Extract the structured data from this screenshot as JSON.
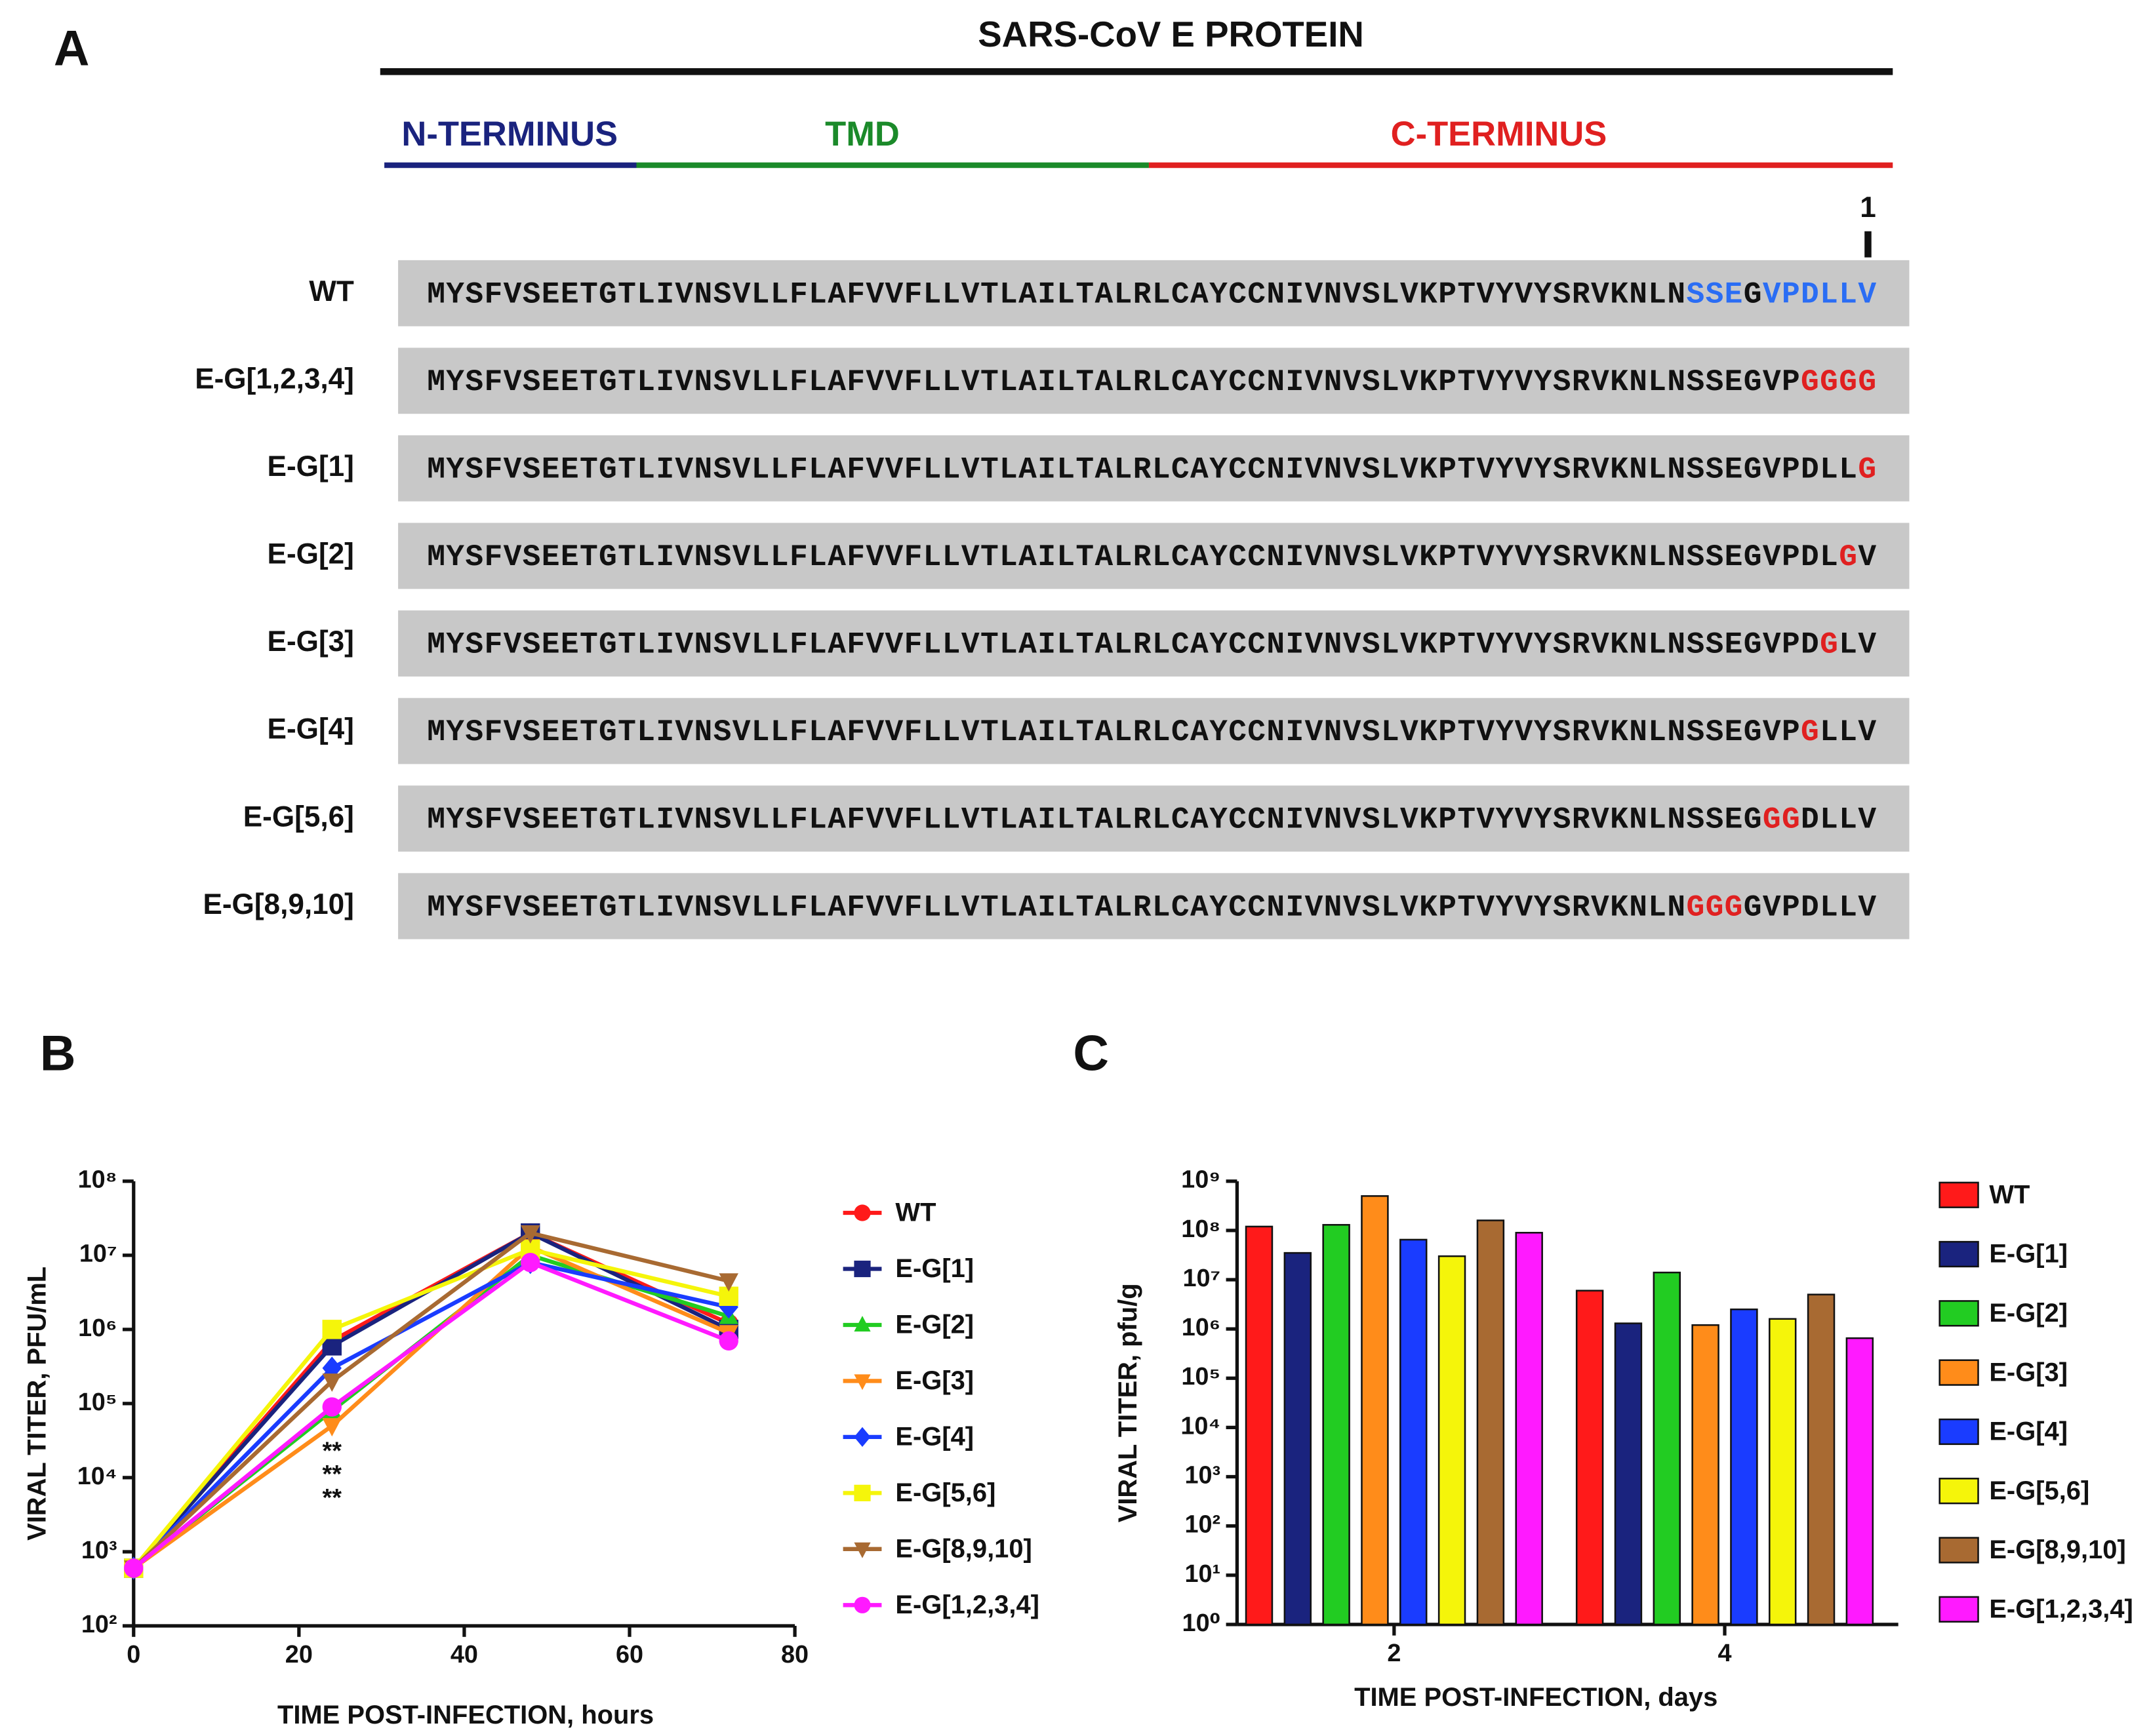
{
  "sequence_panel": {
    "label": "A",
    "title": "SARS-CoV E PROTEIN",
    "domains": [
      {
        "label": "N-TERMINUS",
        "color": "#1a237e"
      },
      {
        "label": "TMD",
        "color": "#1b8a2a"
      },
      {
        "label": "C-TERMINUS",
        "color": "#e02020"
      }
    ],
    "position_label": "1",
    "rows": [
      {
        "name": "WT",
        "segments": [
          {
            "text": "MYSFVSEETGTLIVNSVLLFLAFVVFLLVTLAILTALRLCAYCCNIVNVSLVKPTVYVYSRVKNLN",
            "color": "#111111"
          },
          {
            "text": "SSE",
            "color": "#2a6df4"
          },
          {
            "text": "G",
            "color": "#111111"
          },
          {
            "text": "VPDLLV",
            "color": "#2a6df4"
          }
        ]
      },
      {
        "name": "E-G[1,2,3,4]",
        "segments": [
          {
            "text": "MYSFVSEETGTLIVNSVLLFLAFVVFLLVTLAILTALRLCAYCCNIVNVSLVKPTVYVYSRVKNLNSSEGVP",
            "color": "#111111"
          },
          {
            "text": "GGGG",
            "color": "#e02020"
          }
        ]
      },
      {
        "name": "E-G[1]",
        "segments": [
          {
            "text": "MYSFVSEETGTLIVNSVLLFLAFVVFLLVTLAILTALRLCAYCCNIVNVSLVKPTVYVYSRVKNLNSSEGVPDLL",
            "color": "#111111"
          },
          {
            "text": "G",
            "color": "#e02020"
          }
        ]
      },
      {
        "name": "E-G[2]",
        "segments": [
          {
            "text": "MYSFVSEETGTLIVNSVLLFLAFVVFLLVTLAILTALRLCAYCCNIVNVSLVKPTVYVYSRVKNLNSSEGVPDL",
            "color": "#111111"
          },
          {
            "text": "G",
            "color": "#e02020"
          },
          {
            "text": "V",
            "color": "#111111"
          }
        ]
      },
      {
        "name": "E-G[3]",
        "segments": [
          {
            "text": "MYSFVSEETGTLIVNSVLLFLAFVVFLLVTLAILTALRLCAYCCNIVNVSLVKPTVYVYSRVKNLNSSEGVPD",
            "color": "#111111"
          },
          {
            "text": "G",
            "color": "#e02020"
          },
          {
            "text": "LV",
            "color": "#111111"
          }
        ]
      },
      {
        "name": "E-G[4]",
        "segments": [
          {
            "text": "MYSFVSEETGTLIVNSVLLFLAFVVFLLVTLAILTALRLCAYCCNIVNVSLVKPTVYVYSRVKNLNSSEGVP",
            "color": "#111111"
          },
          {
            "text": "G",
            "color": "#e02020"
          },
          {
            "text": "LLV",
            "color": "#111111"
          }
        ]
      },
      {
        "name": "E-G[5,6]",
        "segments": [
          {
            "text": "MYSFVSEETGTLIVNSVLLFLAFVVFLLVTLAILTALRLCAYCCNIVNVSLVKPTVYVYSRVKNLNSSEG",
            "color": "#111111"
          },
          {
            "text": "GG",
            "color": "#e02020"
          },
          {
            "text": "DLLV",
            "color": "#111111"
          }
        ]
      },
      {
        "name": "E-G[8,9,10]",
        "segments": [
          {
            "text": "MYSFVSEETGTLIVNSVLLFLAFVVFLLVTLAILTALRLCAYCCNIVNVSLVKPTVYVYSRVKNLN",
            "color": "#111111"
          },
          {
            "text": "GGG",
            "color": "#e02020"
          },
          {
            "text": "GVPDLLV",
            "color": "#111111"
          }
        ]
      }
    ]
  },
  "chart_data": [
    {
      "type": "line",
      "panel_label": "B",
      "x_label": "TIME POST-INFECTION, hours",
      "y_label": "VIRAL TITER, PFU/mL",
      "x": [
        0,
        24,
        48,
        72
      ],
      "xlim": [
        0,
        80
      ],
      "xticks": [
        0,
        20,
        40,
        60,
        80
      ],
      "log_y": true,
      "ylim": [
        100,
        100000000
      ],
      "yticks": [
        {
          "value": 100,
          "label": "10²"
        },
        {
          "value": 1000,
          "label": "10³"
        },
        {
          "value": 10000,
          "label": "10⁴"
        },
        {
          "value": 100000,
          "label": "10⁵"
        },
        {
          "value": 1000000,
          "label": "10⁶"
        },
        {
          "value": 10000000,
          "label": "10⁷"
        },
        {
          "value": 100000000,
          "label": "10⁸"
        }
      ],
      "annotations": [
        "**",
        "**",
        "**"
      ],
      "series": [
        {
          "name": "WT",
          "color": "#ff1a1a",
          "marker": "circle",
          "values": [
            600,
            700000,
            20000000,
            1200000
          ]
        },
        {
          "name": "E-G[1]",
          "color": "#1a237e",
          "marker": "square",
          "values": [
            600,
            600000,
            20000000,
            1000000
          ]
        },
        {
          "name": "E-G[2]",
          "color": "#22cc22",
          "marker": "triangle",
          "values": [
            600,
            80000,
            10000000,
            1500000
          ]
        },
        {
          "name": "E-G[3]",
          "color": "#ff8c1a",
          "marker": "triangle-down",
          "values": [
            600,
            50000,
            13000000,
            900000
          ]
        },
        {
          "name": "E-G[4]",
          "color": "#1a3cff",
          "marker": "diamond",
          "values": [
            600,
            300000,
            8000000,
            2000000
          ]
        },
        {
          "name": "E-G[5,6]",
          "color": "#f5f50a",
          "marker": "square",
          "values": [
            600,
            1000000,
            12000000,
            2800000
          ]
        },
        {
          "name": "E-G[8,9,10]",
          "color": "#a86a32",
          "marker": "triangle-down",
          "values": [
            600,
            200000,
            20000000,
            4500000
          ]
        },
        {
          "name": "E-G[1,2,3,4]",
          "color": "#ff1aff",
          "marker": "circle",
          "values": [
            600,
            90000,
            8000000,
            700000
          ]
        }
      ]
    },
    {
      "type": "bar",
      "panel_label": "C",
      "x_label": "TIME POST-INFECTION, days",
      "y_label": "VIRAL TITER, pfu/g",
      "categories": [
        "2",
        "4"
      ],
      "log_y": true,
      "ylim": [
        1,
        1000000000
      ],
      "yticks": [
        {
          "value": 1,
          "label": "10⁰"
        },
        {
          "value": 10,
          "label": "10¹"
        },
        {
          "value": 100,
          "label": "10²"
        },
        {
          "value": 1000,
          "label": "10³"
        },
        {
          "value": 10000,
          "label": "10⁴"
        },
        {
          "value": 100000,
          "label": "10⁵"
        },
        {
          "value": 1000000,
          "label": "10⁶"
        },
        {
          "value": 10000000,
          "label": "10⁷"
        },
        {
          "value": 100000000,
          "label": "10⁸"
        },
        {
          "value": 1000000000,
          "label": "10⁹"
        }
      ],
      "series": [
        {
          "name": "WT",
          "color": "#ff1a1a",
          "values": [
            120000000,
            6000000
          ]
        },
        {
          "name": "E-G[1]",
          "color": "#1a237e",
          "values": [
            35000000,
            1300000
          ]
        },
        {
          "name": "E-G[2]",
          "color": "#22cc22",
          "values": [
            130000000,
            14000000
          ]
        },
        {
          "name": "E-G[3]",
          "color": "#ff8c1a",
          "values": [
            500000000,
            1200000
          ]
        },
        {
          "name": "E-G[4]",
          "color": "#1a3cff",
          "values": [
            65000000,
            2500000
          ]
        },
        {
          "name": "E-G[5,6]",
          "color": "#f5f50a",
          "values": [
            30000000,
            1600000
          ]
        },
        {
          "name": "E-G[8,9,10]",
          "color": "#a86a32",
          "values": [
            160000000,
            5000000
          ]
        },
        {
          "name": "E-G[1,2,3,4]",
          "color": "#ff1aff",
          "values": [
            90000000,
            650000
          ]
        }
      ]
    }
  ]
}
